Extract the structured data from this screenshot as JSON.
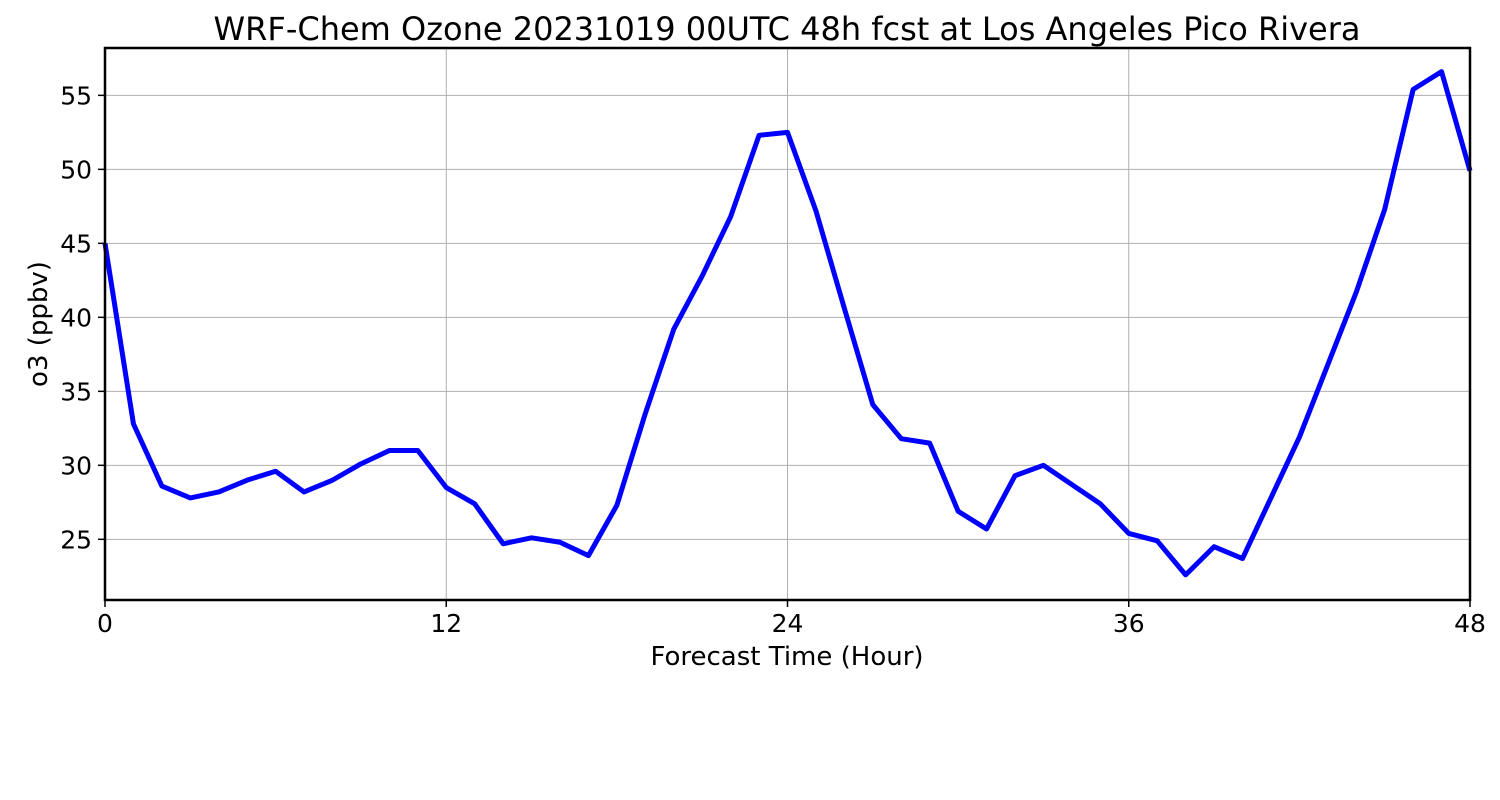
{
  "chart_data": {
    "type": "line",
    "title": "WRF-Chem Ozone  20231019 00UTC 48h fcst at Los Angeles Pico Rivera",
    "xlabel": "Forecast Time (Hour)",
    "ylabel": "o3  (ppbv)",
    "xlim": [
      0,
      48
    ],
    "ylim": [
      20.9,
      58.2
    ],
    "xticks": [
      0,
      12,
      24,
      36,
      48
    ],
    "yticks": [
      25,
      30,
      35,
      40,
      45,
      50,
      55
    ],
    "grid": true,
    "series": [
      {
        "color": "#0000ff",
        "x": [
          0,
          1,
          2,
          3,
          4,
          5,
          6,
          7,
          8,
          9,
          10,
          11,
          12,
          13,
          14,
          15,
          16,
          17,
          18,
          19,
          20,
          21,
          22,
          23,
          24,
          25,
          26,
          27,
          28,
          29,
          30,
          31,
          32,
          33,
          34,
          35,
          36,
          37,
          38,
          39,
          40,
          41,
          42,
          43,
          44,
          45,
          46,
          47,
          48
        ],
        "values": [
          45.0,
          32.8,
          28.6,
          27.8,
          28.2,
          29.0,
          29.6,
          28.2,
          29.0,
          30.1,
          31.0,
          31.0,
          28.5,
          27.4,
          24.7,
          25.1,
          24.8,
          23.9,
          27.3,
          33.5,
          39.2,
          42.8,
          46.8,
          52.3,
          52.5,
          47.2,
          40.6,
          34.1,
          31.8,
          31.5,
          26.9,
          25.7,
          29.3,
          30.0,
          28.7,
          27.4,
          25.4,
          24.9,
          22.6,
          24.5,
          23.7,
          27.8,
          31.9,
          36.8,
          41.7,
          47.3,
          55.4,
          56.6,
          49.9
        ]
      }
    ]
  }
}
